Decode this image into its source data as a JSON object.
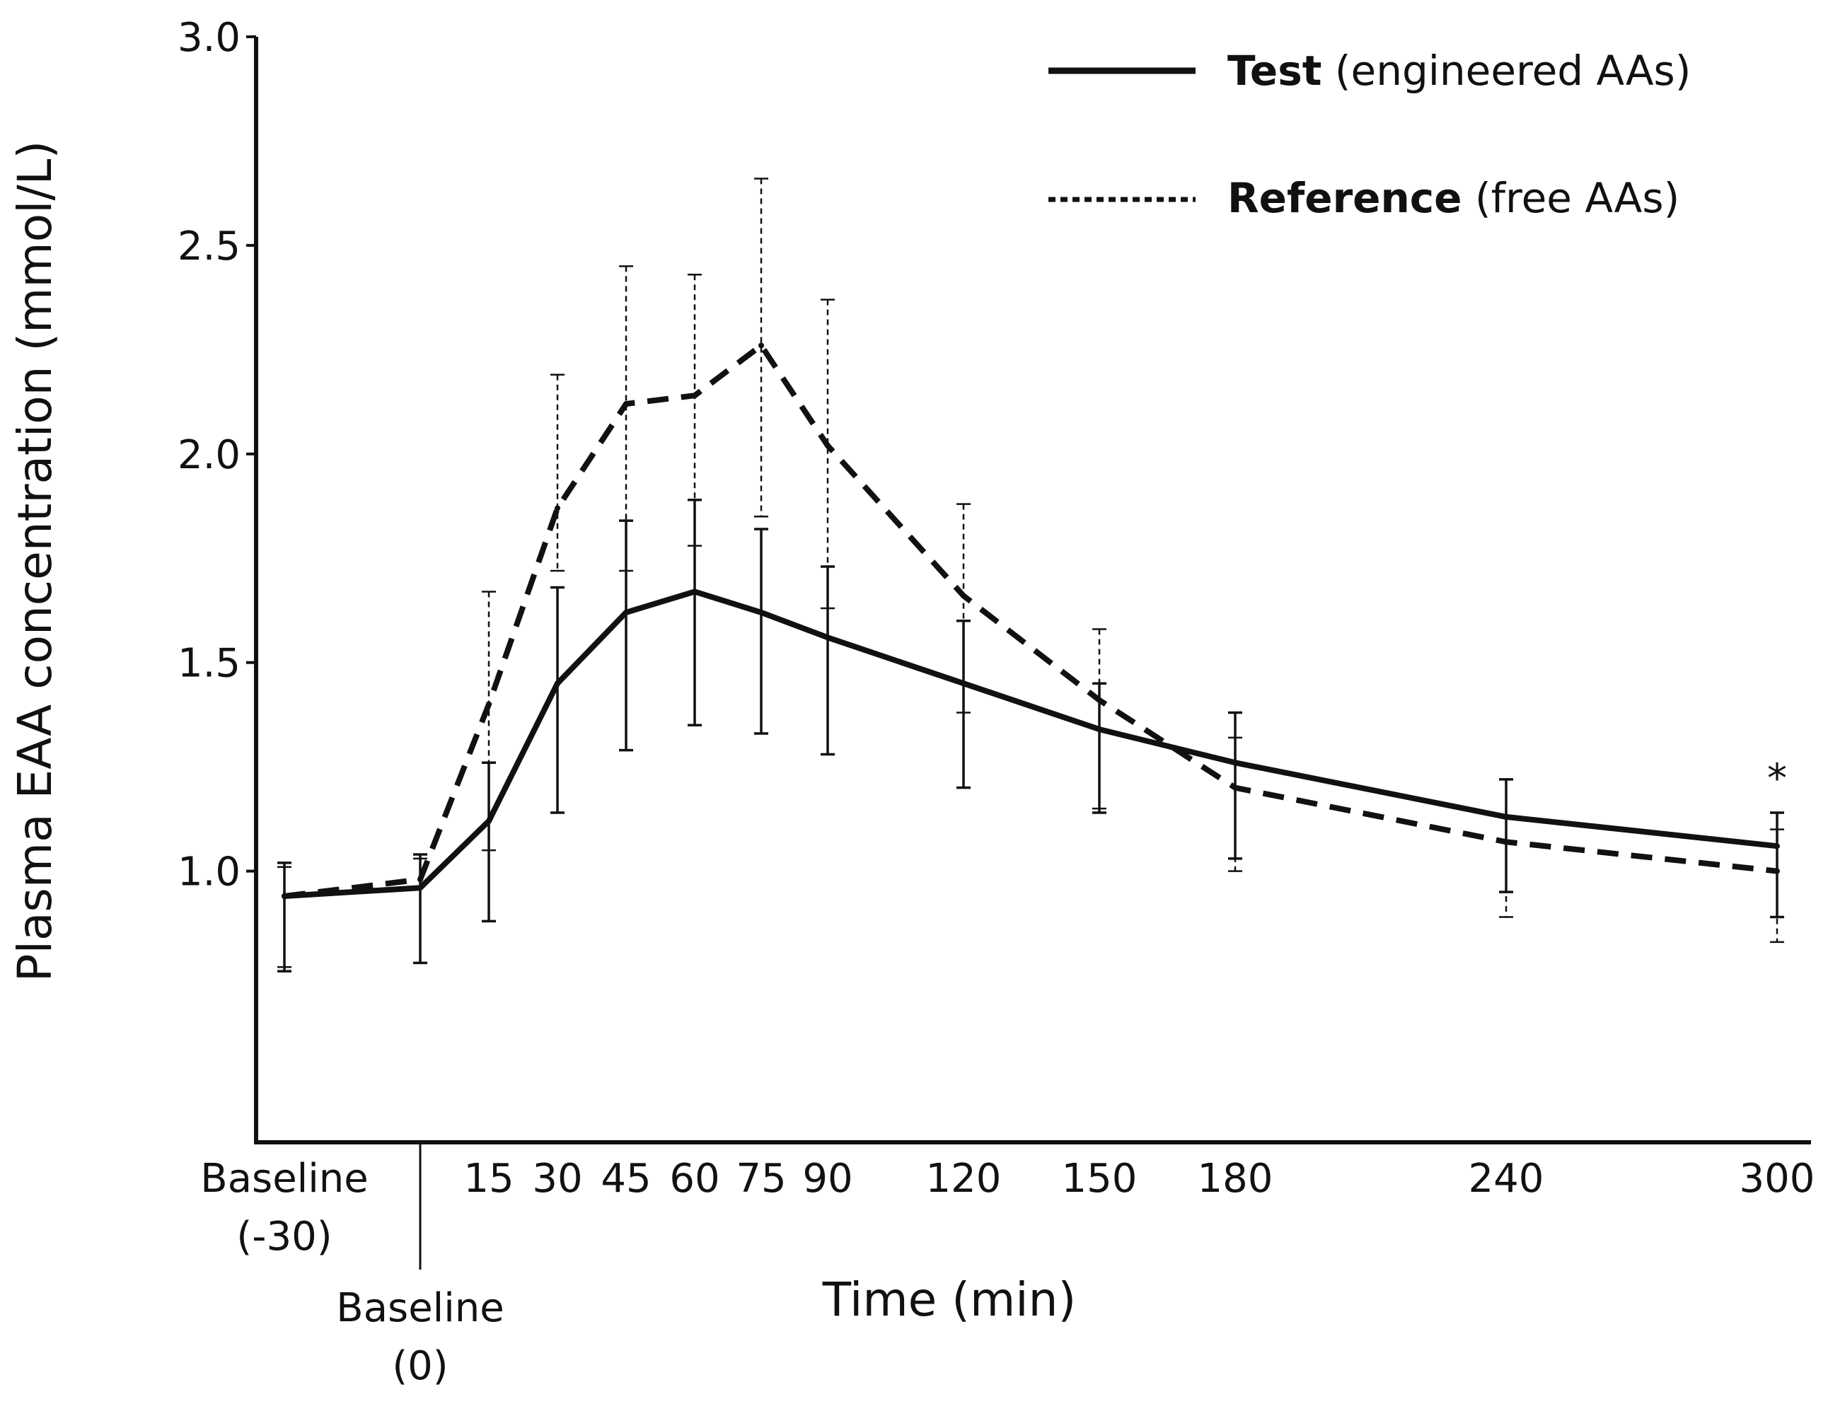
{
  "chart_data": {
    "type": "line",
    "title": "",
    "xlabel": "Time (min)",
    "ylabel": "Plasma EAA concentration (mmol/L)",
    "ylim": [
      0.35,
      3.0
    ],
    "yticks": [
      1.0,
      1.5,
      2.0,
      2.5,
      3.0
    ],
    "ytick_labels": [
      "1.0",
      "1.5",
      "2.0",
      "2.5",
      "3.0"
    ],
    "x": [
      -30,
      0,
      15,
      30,
      45,
      60,
      75,
      90,
      120,
      150,
      180,
      240,
      300
    ],
    "x_tick_labels": [
      {
        "x": -30,
        "lines": [
          "Baseline",
          "(-30)"
        ]
      },
      {
        "x": 0,
        "lines": [
          "Baseline",
          "(0)"
        ]
      },
      {
        "x": 15,
        "lines": [
          "15"
        ]
      },
      {
        "x": 30,
        "lines": [
          "30"
        ]
      },
      {
        "x": 45,
        "lines": [
          "45"
        ]
      },
      {
        "x": 60,
        "lines": [
          "60"
        ]
      },
      {
        "x": 75,
        "lines": [
          "75"
        ]
      },
      {
        "x": 90,
        "lines": [
          "90"
        ]
      },
      {
        "x": 120,
        "lines": [
          "120"
        ]
      },
      {
        "x": 150,
        "lines": [
          "150"
        ]
      },
      {
        "x": 180,
        "lines": [
          "180"
        ]
      },
      {
        "x": 240,
        "lines": [
          "240"
        ]
      },
      {
        "x": 300,
        "lines": [
          "300"
        ]
      }
    ],
    "series": [
      {
        "name": "Test",
        "legend_bold": "Test",
        "legend_rest": " (engineered AAs)",
        "style": "solid",
        "values": [
          0.94,
          0.96,
          1.12,
          1.45,
          1.62,
          1.67,
          1.62,
          1.56,
          1.45,
          1.34,
          1.26,
          1.13,
          1.06
        ],
        "err_low": [
          0.76,
          0.78,
          0.88,
          1.14,
          1.29,
          1.35,
          1.33,
          1.28,
          1.2,
          1.14,
          1.03,
          0.95,
          0.89
        ],
        "err_high": [
          1.02,
          1.04,
          1.26,
          1.68,
          1.84,
          1.89,
          1.82,
          1.73,
          1.6,
          1.45,
          1.38,
          1.22,
          1.14
        ]
      },
      {
        "name": "Reference",
        "legend_bold": "Reference",
        "legend_rest": " (free AAs)",
        "style": "dashed",
        "values": [
          0.94,
          0.98,
          1.4,
          1.87,
          2.12,
          2.14,
          2.26,
          2.02,
          1.66,
          1.41,
          1.2,
          1.07,
          1.0
        ],
        "err_low": [
          0.77,
          0.78,
          1.05,
          1.72,
          1.72,
          1.78,
          1.85,
          1.63,
          1.38,
          1.15,
          1.0,
          0.89,
          0.83
        ],
        "err_high": [
          1.01,
          1.03,
          1.67,
          2.19,
          2.45,
          2.43,
          2.66,
          2.37,
          1.88,
          1.58,
          1.32,
          1.13,
          1.1
        ]
      }
    ],
    "annotations": [
      {
        "x": 300,
        "text": "*"
      }
    ],
    "legend_position": "top-right",
    "grid": false
  }
}
